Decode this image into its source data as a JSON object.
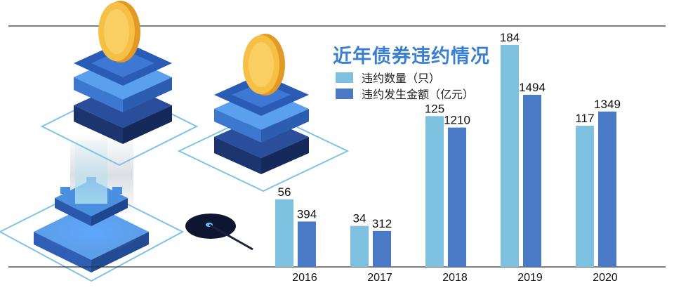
{
  "chart_data": {
    "type": "bar",
    "title": "近年债券违约情况",
    "categories": [
      "2016",
      "2017",
      "2018",
      "2019",
      "2020"
    ],
    "series": [
      {
        "name": "违约数量（只）",
        "values": [
          56,
          34,
          125,
          184,
          117
        ],
        "color": "#7ec0e0"
      },
      {
        "name": "违约发生金额（亿元）",
        "values": [
          394,
          312,
          1210,
          1494,
          1349
        ],
        "color": "#4a79c6"
      }
    ],
    "y_scale_note": "each series drawn on its own independent scale",
    "grid": false,
    "legend_position": "top"
  },
  "decoration": {
    "illustration": "isometric-server-stacks-with-gold-coins",
    "colors": {
      "coin": "#f2b53a",
      "block_light": "#4f93e6",
      "block_dark": "#1f3d86",
      "frame": "#7fc3e6"
    }
  }
}
